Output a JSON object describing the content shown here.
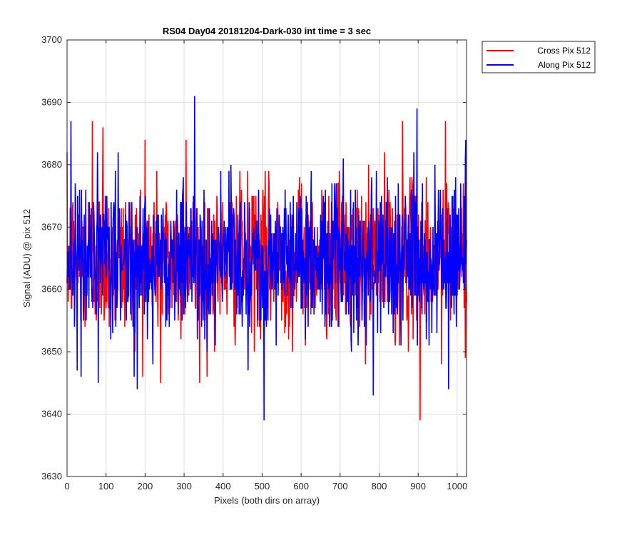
{
  "chart_data": {
    "type": "line",
    "title": "RS04 Day04 20181204-Dark-030 int time = 3 sec",
    "xlabel": "Pixels (both dirs on array)",
    "ylabel": "Signal (ADU) @ pix 512",
    "xlim": [
      0,
      1024
    ],
    "ylim": [
      3630,
      3700
    ],
    "xticks": [
      0,
      100,
      200,
      300,
      400,
      500,
      600,
      700,
      800,
      900,
      1000
    ],
    "yticks": [
      3630,
      3640,
      3650,
      3660,
      3670,
      3680,
      3690,
      3700
    ],
    "grid": true,
    "legend_position": "outside top-right",
    "series": [
      {
        "name": "Cross Pix 512",
        "color": "#ff0000",
        "x_start": 0,
        "x_step": 1,
        "mean": 3665,
        "noise_std": 6,
        "notable_points": [
          {
            "x": 65,
            "y": 3687
          },
          {
            "x": 92,
            "y": 3686
          },
          {
            "x": 200,
            "y": 3684
          },
          {
            "x": 305,
            "y": 3684
          },
          {
            "x": 860,
            "y": 3687
          },
          {
            "x": 970,
            "y": 3687
          },
          {
            "x": 905,
            "y": 3639
          },
          {
            "x": 240,
            "y": 3645
          },
          {
            "x": 340,
            "y": 3645
          },
          {
            "x": 960,
            "y": 3648
          }
        ]
      },
      {
        "name": "Along Pix 512",
        "color": "#0000ff",
        "x_start": 0,
        "x_step": 1,
        "mean": 3665,
        "noise_std": 6,
        "notable_points": [
          {
            "x": 10,
            "y": 3687
          },
          {
            "x": 327,
            "y": 3691
          },
          {
            "x": 897,
            "y": 3689
          },
          {
            "x": 505,
            "y": 3639
          },
          {
            "x": 80,
            "y": 3645
          },
          {
            "x": 180,
            "y": 3644
          },
          {
            "x": 785,
            "y": 3643
          },
          {
            "x": 978,
            "y": 3644
          },
          {
            "x": 1022,
            "y": 3684
          }
        ]
      }
    ]
  }
}
